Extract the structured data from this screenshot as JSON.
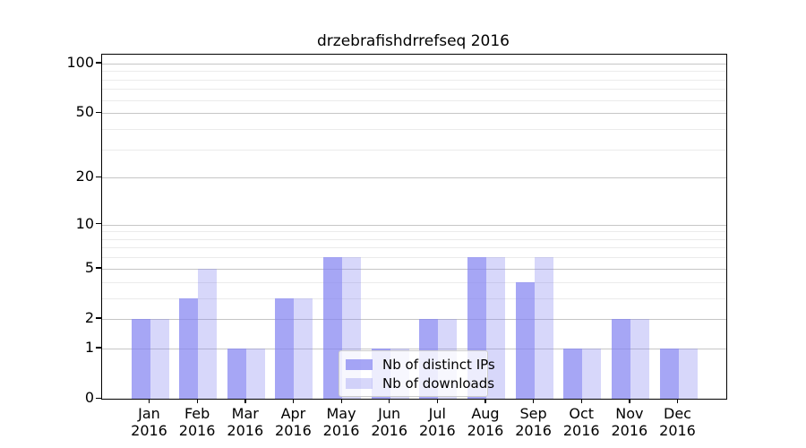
{
  "title": "drzebrafishdrrefseq 2016",
  "chart_data": {
    "type": "bar",
    "title": "drzebrafishdrrefseq 2016",
    "categories": [
      "Jan 2016",
      "Feb 2016",
      "Mar 2016",
      "Apr 2016",
      "May 2016",
      "Jun 2016",
      "Jul 2016",
      "Aug 2016",
      "Sep 2016",
      "Oct 2016",
      "Nov 2016",
      "Dec 2016"
    ],
    "series": [
      {
        "name": "Nb of distinct IPs",
        "values": [
          2,
          3,
          1,
          3,
          6,
          1,
          2,
          6,
          4,
          1,
          2,
          1
        ],
        "color": "rgba(132,132,241,0.72)"
      },
      {
        "name": "Nb of downloads",
        "values": [
          2,
          5,
          1,
          3,
          6,
          1,
          2,
          6,
          6,
          1,
          2,
          1
        ],
        "color": "rgba(132,132,241,0.32)"
      }
    ],
    "xlabel": "",
    "ylabel": "",
    "yscale": "log1p",
    "ylim": [
      0,
      113
    ],
    "yticks_major": [
      0,
      1,
      2,
      5,
      10,
      20,
      50,
      100
    ],
    "yticks_minor": [
      3,
      4,
      6,
      7,
      8,
      9,
      30,
      40,
      60,
      70,
      80,
      90
    ],
    "grid": true,
    "legend_position": "lower center",
    "colors": {
      "grid_major": "#c6c6c6",
      "grid_minor": "#ebebeb",
      "axis": "#000000"
    }
  }
}
